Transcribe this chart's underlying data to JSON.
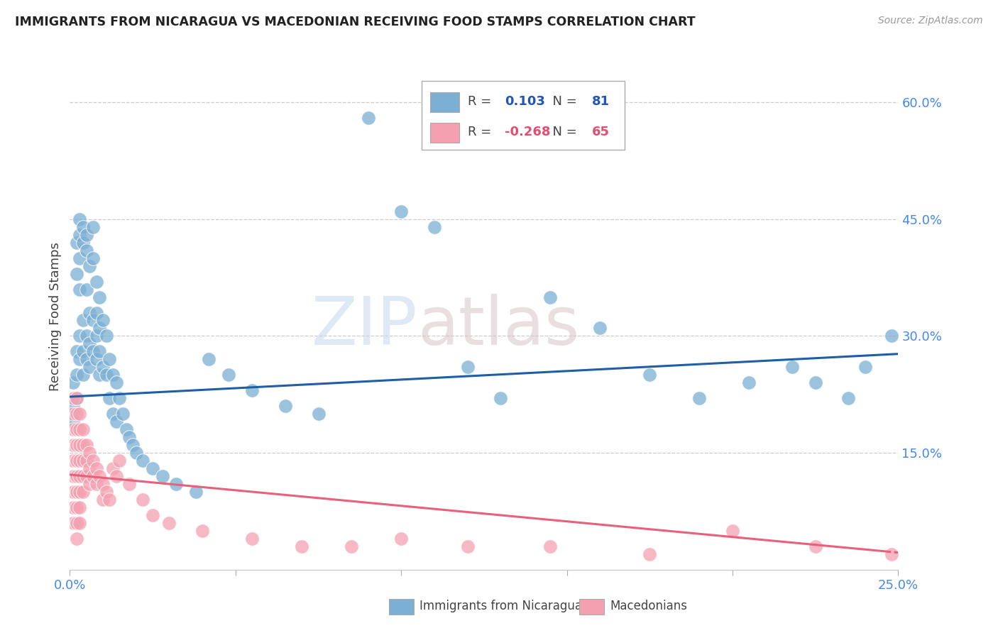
{
  "title": "IMMIGRANTS FROM NICARAGUA VS MACEDONIAN RECEIVING FOOD STAMPS CORRELATION CHART",
  "source": "Source: ZipAtlas.com",
  "ylabel": "Receiving Food Stamps",
  "ytick_labels": [
    "15.0%",
    "30.0%",
    "45.0%",
    "60.0%"
  ],
  "ytick_vals": [
    0.15,
    0.3,
    0.45,
    0.6
  ],
  "xlim": [
    0.0,
    0.25
  ],
  "ylim": [
    0.0,
    0.65
  ],
  "watermark": "ZIPatlas",
  "series1_label": "Immigrants from Nicaragua",
  "series1_color": "#7BAFD4",
  "series1_R": 0.103,
  "series1_N": 81,
  "series1_trend_color": "#1F5FA6",
  "series2_label": "Macedonians",
  "series2_color": "#F4A0B0",
  "series2_R": -0.268,
  "series2_N": 65,
  "series2_trend_color": "#E8607A",
  "nicaragua_x": [
    0.001,
    0.001,
    0.001,
    0.002,
    0.002,
    0.002,
    0.002,
    0.002,
    0.003,
    0.003,
    0.003,
    0.003,
    0.003,
    0.003,
    0.004,
    0.004,
    0.004,
    0.004,
    0.004,
    0.005,
    0.005,
    0.005,
    0.005,
    0.005,
    0.006,
    0.006,
    0.006,
    0.006,
    0.007,
    0.007,
    0.007,
    0.007,
    0.008,
    0.008,
    0.008,
    0.008,
    0.009,
    0.009,
    0.009,
    0.009,
    0.01,
    0.01,
    0.011,
    0.011,
    0.012,
    0.012,
    0.013,
    0.013,
    0.014,
    0.014,
    0.015,
    0.016,
    0.017,
    0.018,
    0.019,
    0.02,
    0.022,
    0.025,
    0.028,
    0.032,
    0.038,
    0.042,
    0.048,
    0.055,
    0.065,
    0.075,
    0.09,
    0.1,
    0.11,
    0.12,
    0.13,
    0.145,
    0.16,
    0.175,
    0.19,
    0.205,
    0.218,
    0.225,
    0.235,
    0.24,
    0.248
  ],
  "nicaragua_y": [
    0.24,
    0.21,
    0.19,
    0.42,
    0.38,
    0.28,
    0.25,
    0.22,
    0.45,
    0.43,
    0.4,
    0.36,
    0.3,
    0.27,
    0.44,
    0.42,
    0.32,
    0.28,
    0.25,
    0.43,
    0.41,
    0.36,
    0.3,
    0.27,
    0.39,
    0.33,
    0.29,
    0.26,
    0.44,
    0.4,
    0.32,
    0.28,
    0.37,
    0.33,
    0.3,
    0.27,
    0.35,
    0.31,
    0.28,
    0.25,
    0.32,
    0.26,
    0.3,
    0.25,
    0.27,
    0.22,
    0.25,
    0.2,
    0.24,
    0.19,
    0.22,
    0.2,
    0.18,
    0.17,
    0.16,
    0.15,
    0.14,
    0.13,
    0.12,
    0.11,
    0.1,
    0.27,
    0.25,
    0.23,
    0.21,
    0.2,
    0.58,
    0.46,
    0.44,
    0.26,
    0.22,
    0.35,
    0.31,
    0.25,
    0.22,
    0.24,
    0.26,
    0.24,
    0.22,
    0.26,
    0.3
  ],
  "macedonian_x": [
    0.001,
    0.001,
    0.001,
    0.001,
    0.001,
    0.001,
    0.001,
    0.001,
    0.001,
    0.002,
    0.002,
    0.002,
    0.002,
    0.002,
    0.002,
    0.002,
    0.002,
    0.002,
    0.002,
    0.003,
    0.003,
    0.003,
    0.003,
    0.003,
    0.003,
    0.003,
    0.003,
    0.004,
    0.004,
    0.004,
    0.004,
    0.004,
    0.005,
    0.005,
    0.005,
    0.006,
    0.006,
    0.006,
    0.007,
    0.007,
    0.008,
    0.008,
    0.009,
    0.01,
    0.01,
    0.011,
    0.012,
    0.013,
    0.014,
    0.015,
    0.018,
    0.022,
    0.025,
    0.03,
    0.04,
    0.055,
    0.07,
    0.085,
    0.1,
    0.12,
    0.145,
    0.175,
    0.2,
    0.225,
    0.248
  ],
  "macedonian_y": [
    0.22,
    0.2,
    0.18,
    0.16,
    0.14,
    0.12,
    0.1,
    0.08,
    0.06,
    0.22,
    0.2,
    0.18,
    0.16,
    0.14,
    0.12,
    0.1,
    0.08,
    0.06,
    0.04,
    0.2,
    0.18,
    0.16,
    0.14,
    0.12,
    0.1,
    0.08,
    0.06,
    0.18,
    0.16,
    0.14,
    0.12,
    0.1,
    0.16,
    0.14,
    0.12,
    0.15,
    0.13,
    0.11,
    0.14,
    0.12,
    0.13,
    0.11,
    0.12,
    0.11,
    0.09,
    0.1,
    0.09,
    0.13,
    0.12,
    0.14,
    0.11,
    0.09,
    0.07,
    0.06,
    0.05,
    0.04,
    0.03,
    0.03,
    0.04,
    0.03,
    0.03,
    0.02,
    0.05,
    0.03,
    0.02
  ],
  "xtick_positions": [
    0.0,
    0.05,
    0.1,
    0.15,
    0.2,
    0.25
  ],
  "xtick_show_labels": [
    true,
    false,
    false,
    false,
    false,
    true
  ],
  "xtick_label_vals": [
    "0.0%",
    "",
    "",
    "",
    "",
    "25.0%"
  ]
}
